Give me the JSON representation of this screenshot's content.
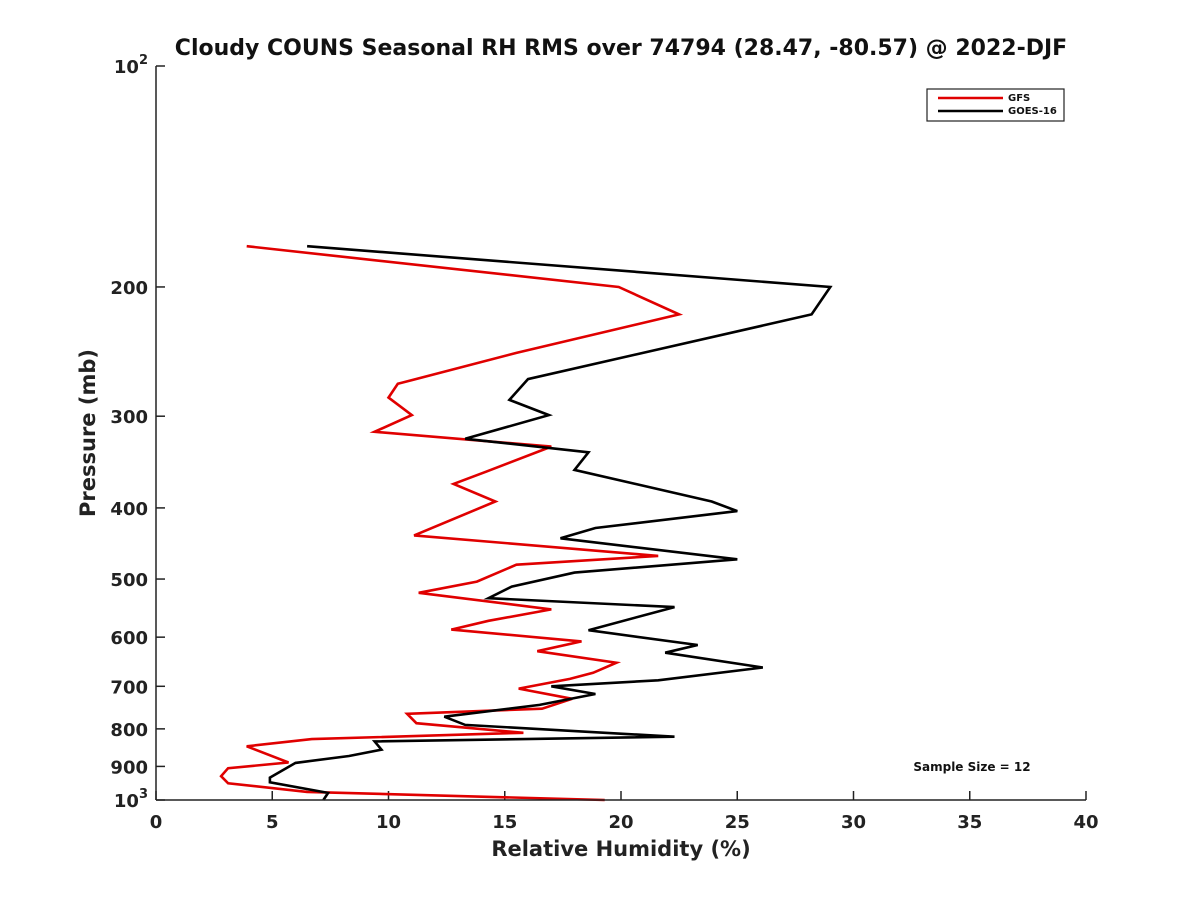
{
  "chart_data": {
    "type": "line",
    "title": "Cloudy COUNS Seasonal RH RMS over 74794 (28.47, -80.57) @ 2022-DJF",
    "xlabel": "Relative Humidity (%)",
    "ylabel": "Pressure (mb)",
    "xlim": [
      0,
      40
    ],
    "ylim": [
      100,
      1000
    ],
    "yscale": "log",
    "yreversed": true,
    "x_ticks": [
      "0",
      "5",
      "10",
      "15",
      "20",
      "25",
      "30",
      "35",
      "40"
    ],
    "y_ticks": [
      {
        "value": 100,
        "base": "10",
        "exp": "2"
      },
      {
        "value": 200,
        "label": "200"
      },
      {
        "value": 300,
        "label": "300"
      },
      {
        "value": 400,
        "label": "400"
      },
      {
        "value": 500,
        "label": "500"
      },
      {
        "value": 600,
        "label": "600"
      },
      {
        "value": 700,
        "label": "700"
      },
      {
        "value": 800,
        "label": "800"
      },
      {
        "value": 900,
        "label": "900"
      },
      {
        "value": 1000,
        "base": "10",
        "exp": "3"
      }
    ],
    "legend_position": "top-right",
    "annotation": "Sample Size = 12",
    "series": [
      {
        "name": "GFS",
        "color": "#e00000",
        "points": [
          [
            3.9,
            176
          ],
          [
            19.9,
            200
          ],
          [
            22.5,
            218
          ],
          [
            15.5,
            246
          ],
          [
            10.4,
            271
          ],
          [
            10.0,
            283
          ],
          [
            11.0,
            299
          ],
          [
            9.4,
            315
          ],
          [
            17.0,
            330
          ],
          [
            14.2,
            357
          ],
          [
            12.8,
            371
          ],
          [
            14.6,
            392
          ],
          [
            11.1,
            436
          ],
          [
            21.6,
            465
          ],
          [
            15.5,
            478
          ],
          [
            13.8,
            504
          ],
          [
            11.3,
            522
          ],
          [
            17.0,
            550
          ],
          [
            14.3,
            570
          ],
          [
            12.7,
            586
          ],
          [
            18.3,
            608
          ],
          [
            16.4,
            627
          ],
          [
            19.8,
            650
          ],
          [
            18.8,
            671
          ],
          [
            17.8,
            684
          ],
          [
            15.6,
            705
          ],
          [
            17.9,
            728
          ],
          [
            16.6,
            751
          ],
          [
            10.8,
            763
          ],
          [
            11.2,
            786
          ],
          [
            15.8,
            810
          ],
          [
            6.7,
            826
          ],
          [
            3.9,
            845
          ],
          [
            5.7,
            889
          ],
          [
            3.1,
            905
          ],
          [
            2.8,
            928
          ],
          [
            3.1,
            949
          ],
          [
            6.5,
            975
          ],
          [
            19.3,
            1000
          ]
        ]
      },
      {
        "name": "GOES-16",
        "color": "#000000",
        "points": [
          [
            6.5,
            176
          ],
          [
            29.0,
            200
          ],
          [
            28.2,
            218
          ],
          [
            16.0,
            267
          ],
          [
            15.2,
            285
          ],
          [
            16.9,
            299
          ],
          [
            13.3,
            322
          ],
          [
            18.6,
            336
          ],
          [
            18.0,
            355
          ],
          [
            23.9,
            392
          ],
          [
            25.0,
            404
          ],
          [
            18.9,
            426
          ],
          [
            17.4,
            440
          ],
          [
            25.0,
            470
          ],
          [
            18.0,
            490
          ],
          [
            15.3,
            512
          ],
          [
            14.3,
            531
          ],
          [
            22.3,
            546
          ],
          [
            18.6,
            587
          ],
          [
            23.3,
            615
          ],
          [
            21.9,
            630
          ],
          [
            26.1,
            660
          ],
          [
            21.6,
            687
          ],
          [
            17.0,
            700
          ],
          [
            18.9,
            717
          ],
          [
            16.5,
            742
          ],
          [
            12.4,
            770
          ],
          [
            13.3,
            790
          ],
          [
            22.3,
            820
          ],
          [
            9.4,
            832
          ],
          [
            9.7,
            854
          ],
          [
            8.3,
            871
          ],
          [
            6.0,
            890
          ],
          [
            4.9,
            932
          ],
          [
            4.9,
            946
          ],
          [
            7.4,
            978
          ],
          [
            7.2,
            1000
          ]
        ]
      }
    ]
  }
}
